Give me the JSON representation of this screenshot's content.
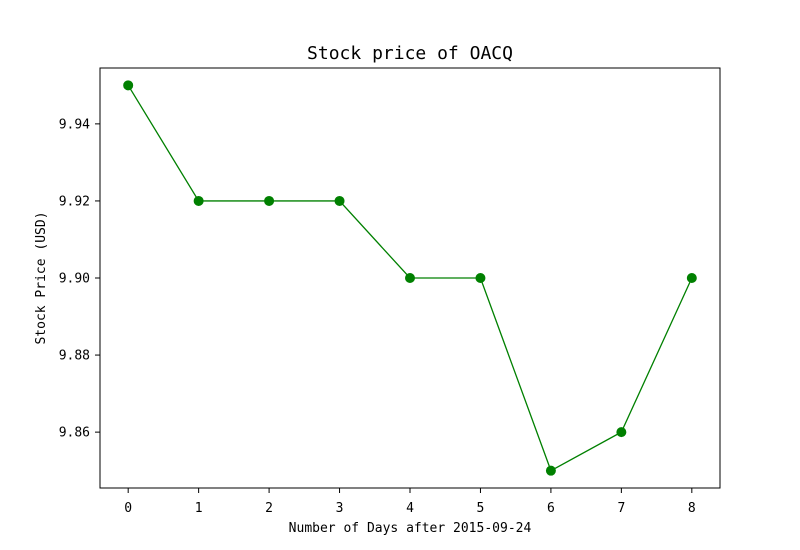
{
  "chart_data": {
    "type": "line",
    "title": "Stock price of OACQ",
    "xlabel": "Number of Days after 2015-09-24",
    "ylabel": "Stock Price (USD)",
    "x": [
      0,
      1,
      2,
      3,
      4,
      5,
      6,
      7,
      8
    ],
    "series": [
      {
        "values": [
          9.95,
          9.92,
          9.92,
          9.92,
          9.9,
          9.9,
          9.85,
          9.86,
          9.9
        ],
        "color": "#008000",
        "marker": "circle"
      }
    ],
    "xticks": [
      0,
      1,
      2,
      3,
      4,
      5,
      6,
      7,
      8
    ],
    "xtick_labels": [
      "0",
      "1",
      "2",
      "3",
      "4",
      "5",
      "6",
      "7",
      "8"
    ],
    "yticks": [
      9.86,
      9.88,
      9.9,
      9.92,
      9.94
    ],
    "ytick_labels": [
      "9.86",
      "9.88",
      "9.90",
      "9.92",
      "9.94"
    ],
    "xlim": [
      -0.4,
      8.4
    ],
    "ylim": [
      9.8455,
      9.9545
    ],
    "grid": false,
    "legend": false
  }
}
